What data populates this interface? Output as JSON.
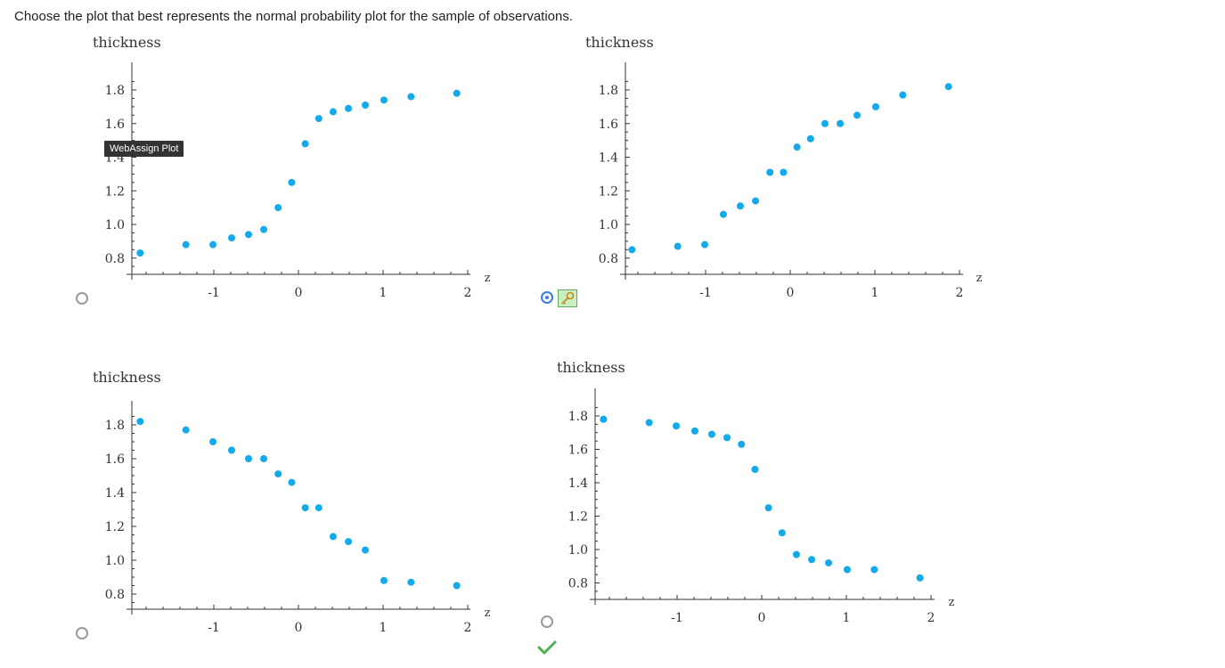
{
  "question": "Choose the plot that best represents the normal probability plot for the sample of observations.",
  "tooltip": "WebAssign Plot",
  "colors": {
    "point": "#12aaeb",
    "axis": "#333333",
    "radio": "#9a9a9a",
    "selected": "#3b7ddd",
    "check": "#4caf50"
  },
  "icons": {
    "key": "key-icon",
    "check": "checkmark-icon"
  },
  "chart_data": [
    {
      "type": "scatter",
      "title": "thickness",
      "xlabel": "z",
      "ylabel": "thickness",
      "xticks": [
        "-1",
        "0",
        "1",
        "2"
      ],
      "yticks": [
        "0.8",
        "1.0",
        "1.2",
        "1.4",
        "1.6",
        "1.8"
      ],
      "xlim": [
        -2.0,
        2.1
      ],
      "ylim": [
        0.72,
        1.92
      ],
      "selected": false,
      "points": [
        [
          -1.87,
          0.83
        ],
        [
          -1.33,
          0.88
        ],
        [
          -1.01,
          0.88
        ],
        [
          -0.79,
          0.92
        ],
        [
          -0.59,
          0.94
        ],
        [
          -0.41,
          0.97
        ],
        [
          -0.24,
          1.1
        ],
        [
          -0.08,
          1.25
        ],
        [
          0.08,
          1.48
        ],
        [
          0.24,
          1.63
        ],
        [
          0.41,
          1.67
        ],
        [
          0.59,
          1.69
        ],
        [
          0.79,
          1.71
        ],
        [
          1.01,
          1.74
        ],
        [
          1.33,
          1.76
        ],
        [
          1.87,
          1.78
        ]
      ]
    },
    {
      "type": "scatter",
      "title": "thickness",
      "xlabel": "z",
      "ylabel": "thickness",
      "xticks": [
        "-1",
        "0",
        "1",
        "2"
      ],
      "yticks": [
        "0.8",
        "1.0",
        "1.2",
        "1.4",
        "1.6",
        "1.8"
      ],
      "xlim": [
        -2.0,
        2.1
      ],
      "ylim": [
        0.72,
        1.92
      ],
      "selected": true,
      "points": [
        [
          -1.87,
          0.85
        ],
        [
          -1.33,
          0.87
        ],
        [
          -1.01,
          0.88
        ],
        [
          -0.79,
          1.06
        ],
        [
          -0.59,
          1.11
        ],
        [
          -0.41,
          1.14
        ],
        [
          -0.24,
          1.31
        ],
        [
          -0.08,
          1.31
        ],
        [
          0.08,
          1.46
        ],
        [
          0.24,
          1.51
        ],
        [
          0.41,
          1.6
        ],
        [
          0.59,
          1.6
        ],
        [
          0.79,
          1.65
        ],
        [
          1.01,
          1.7
        ],
        [
          1.33,
          1.77
        ],
        [
          1.87,
          1.82
        ]
      ]
    },
    {
      "type": "scatter",
      "title": "thickness",
      "xlabel": "z",
      "ylabel": "thickness",
      "xticks": [
        "-1",
        "0",
        "1",
        "2"
      ],
      "yticks": [
        "0.8",
        "1.0",
        "1.2",
        "1.4",
        "1.6",
        "1.8"
      ],
      "xlim": [
        -2.0,
        2.1
      ],
      "ylim": [
        0.72,
        1.92
      ],
      "selected": false,
      "points": [
        [
          -1.87,
          1.82
        ],
        [
          -1.33,
          1.77
        ],
        [
          -1.01,
          1.7
        ],
        [
          -0.79,
          1.65
        ],
        [
          -0.59,
          1.6
        ],
        [
          -0.41,
          1.6
        ],
        [
          -0.24,
          1.51
        ],
        [
          -0.08,
          1.46
        ],
        [
          0.08,
          1.31
        ],
        [
          0.24,
          1.31
        ],
        [
          0.41,
          1.14
        ],
        [
          0.59,
          1.11
        ],
        [
          0.79,
          1.06
        ],
        [
          1.01,
          0.88
        ],
        [
          1.33,
          0.87
        ],
        [
          1.87,
          0.85
        ]
      ]
    },
    {
      "type": "scatter",
      "title": "thickness",
      "xlabel": "z",
      "ylabel": "thickness",
      "xticks": [
        "-1",
        "0",
        "1",
        "2"
      ],
      "yticks": [
        "0.8",
        "1.0",
        "1.2",
        "1.4",
        "1.6",
        "1.8"
      ],
      "xlim": [
        -2.0,
        2.1
      ],
      "ylim": [
        0.72,
        1.92
      ],
      "selected": false,
      "correct": true,
      "points": [
        [
          -1.87,
          1.78
        ],
        [
          -1.33,
          1.76
        ],
        [
          -1.01,
          1.74
        ],
        [
          -0.79,
          1.71
        ],
        [
          -0.59,
          1.69
        ],
        [
          -0.41,
          1.67
        ],
        [
          -0.24,
          1.63
        ],
        [
          -0.08,
          1.48
        ],
        [
          0.08,
          1.25
        ],
        [
          0.24,
          1.1
        ],
        [
          0.41,
          0.97
        ],
        [
          0.59,
          0.94
        ],
        [
          0.79,
          0.92
        ],
        [
          1.01,
          0.88
        ],
        [
          1.33,
          0.88
        ],
        [
          1.87,
          0.83
        ]
      ]
    }
  ]
}
